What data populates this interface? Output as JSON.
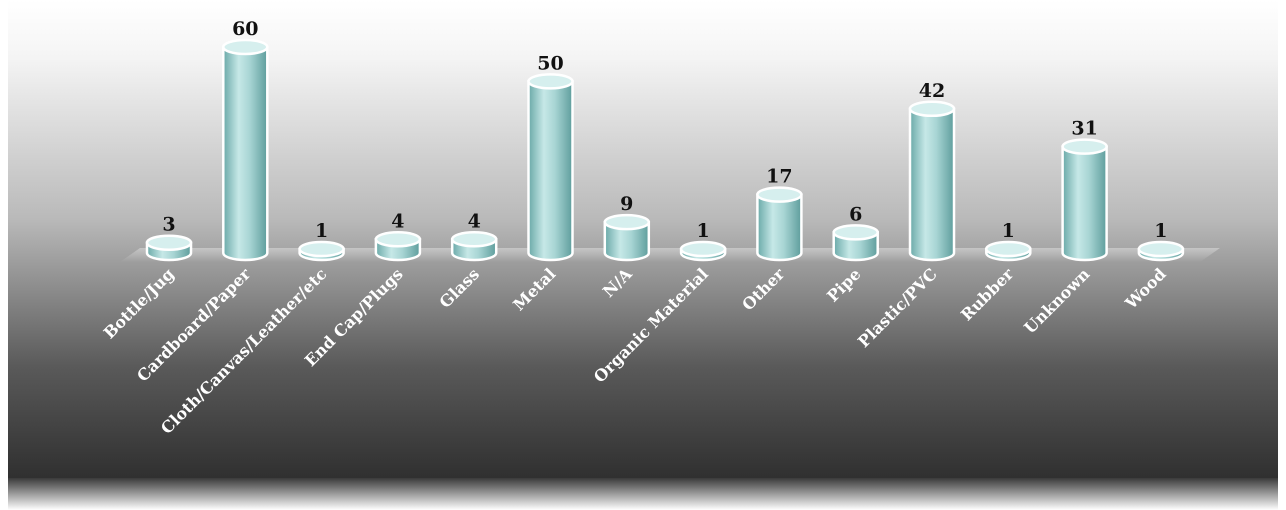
{
  "chart_data": {
    "type": "bar",
    "style": "3d-cylinder",
    "categories": [
      "Bottle/Jug",
      "Cardboard/Paper",
      "Cloth/Canvas/Leather/etc",
      "End Cap/Plugs",
      "Glass",
      "Metal",
      "N/A",
      "Organic Material",
      "Other",
      "Pipe",
      "Plastic/PVC",
      "Rubber",
      "Unknown",
      "Wood"
    ],
    "values": [
      3,
      60,
      1,
      4,
      4,
      50,
      9,
      1,
      17,
      6,
      42,
      1,
      31,
      1
    ],
    "title": "",
    "xlabel": "",
    "ylabel": "",
    "ylim": [
      0,
      60
    ],
    "data_labels": true,
    "grid": false,
    "legend": "none",
    "colors": {
      "bar": "#a7d3d2",
      "bar_outline": "#ffffff",
      "value_text": "#111111",
      "category_text": "#ffffff",
      "background_top": "#ffffff",
      "background_bottom": "#2f2f2f"
    }
  }
}
